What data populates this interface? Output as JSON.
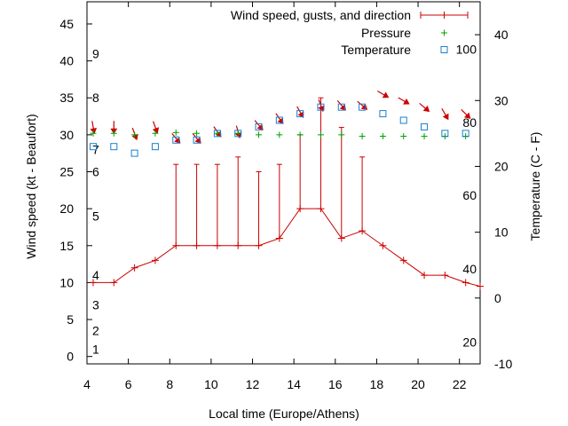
{
  "chart_data": {
    "type": "line",
    "xlabel": "Local time (Europe/Athens)",
    "ylabel_left": "Wind speed (kt - Beaufort)",
    "ylabel_right": "Temperature (C - F)",
    "xlim": [
      4,
      23
    ],
    "ylim_left": [
      -1,
      48
    ],
    "ylim_right": [
      -10,
      45
    ],
    "grid": false,
    "legend_position": "top-right",
    "x_ticks": [
      4,
      6,
      8,
      10,
      12,
      14,
      16,
      18,
      20,
      22
    ],
    "y_left_ticks": [
      0,
      5,
      10,
      15,
      20,
      25,
      30,
      35,
      40,
      45
    ],
    "y_right_ticks": [
      -10,
      0,
      10,
      20,
      30,
      40
    ],
    "beaufort_labels": [
      {
        "text": "1",
        "kt": 1
      },
      {
        "text": "2",
        "kt": 3.5
      },
      {
        "text": "3",
        "kt": 7
      },
      {
        "text": "4",
        "kt": 11
      },
      {
        "text": "5",
        "kt": 19
      },
      {
        "text": "6",
        "kt": 25
      },
      {
        "text": "7",
        "kt": 28
      },
      {
        "text": "8",
        "kt": 35
      },
      {
        "text": "9",
        "kt": 41
      }
    ],
    "fahrenheit_labels": [
      {
        "text": "20",
        "c": -6.7
      },
      {
        "text": "40",
        "c": 4.4
      },
      {
        "text": "60",
        "c": 15.6
      },
      {
        "text": "80",
        "c": 26.7
      },
      {
        "text": "100",
        "c": 37.8
      }
    ],
    "series": [
      {
        "name": "Wind speed, gusts, and direction",
        "color": "#cc0000",
        "x": [
          4.3,
          5.3,
          6.3,
          7.3,
          8.3,
          9.3,
          10.3,
          11.3,
          12.3,
          13.3,
          14.3,
          15.3,
          16.3,
          17.3,
          18.3,
          19.3,
          20.3,
          21.3,
          22.3,
          23.0
        ],
        "values": [
          10,
          10,
          12,
          13,
          15,
          15,
          15,
          15,
          15,
          16,
          20,
          20,
          16,
          17,
          15,
          13,
          11,
          11,
          10,
          9.5
        ],
        "gusts": [
          null,
          null,
          null,
          null,
          26,
          26,
          26,
          27,
          25,
          26,
          30,
          35,
          31,
          27,
          null,
          null,
          null,
          null,
          null,
          null
        ],
        "direction_deg": [
          350,
          0,
          340,
          340,
          320,
          320,
          325,
          345,
          320,
          325,
          330,
          340,
          320,
          310,
          300,
          300,
          310,
          330,
          315,
          null
        ]
      },
      {
        "name": "Pressure",
        "color": "#00a000",
        "x": [
          4.3,
          5.3,
          6.3,
          7.3,
          8.3,
          9.3,
          10.3,
          11.3,
          12.3,
          13.3,
          14.3,
          15.3,
          16.3,
          17.3,
          18.3,
          19.3,
          20.3,
          21.3,
          22.3
        ],
        "values": [
          30.2,
          30.2,
          30.0,
          30.2,
          30.3,
          30.2,
          30.2,
          30.2,
          30.0,
          30.0,
          30.0,
          30.0,
          30.0,
          29.8,
          29.8,
          29.8,
          29.8,
          29.8,
          29.8
        ]
      },
      {
        "name": "Temperature",
        "color": "#1a7fd0",
        "x": [
          4.3,
          5.3,
          6.3,
          7.3,
          8.3,
          9.3,
          10.3,
          11.3,
          12.3,
          13.3,
          14.3,
          15.3,
          16.3,
          17.3,
          18.3,
          19.3,
          20.3,
          21.3,
          22.3
        ],
        "values": [
          23,
          23,
          22,
          23,
          24,
          24,
          25,
          25,
          26,
          27,
          28,
          29,
          29,
          29,
          28,
          27,
          26,
          25,
          25
        ]
      }
    ]
  }
}
